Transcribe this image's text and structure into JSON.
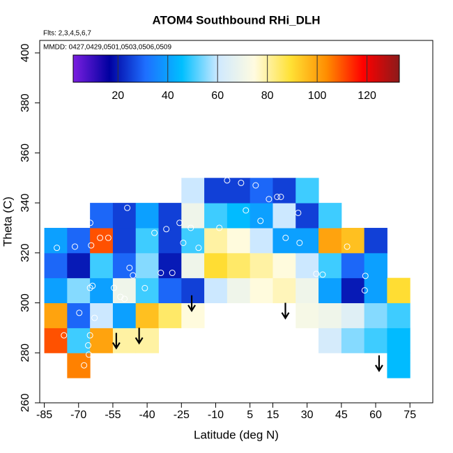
{
  "chart_data": {
    "type": "heatmap",
    "title": "ATOM4 Southbound RHi_DLH",
    "annotations": [
      "Flts: 2,3,4,5,6,7",
      "MMDD: 0427,0429,0501,0503,0506,0509"
    ],
    "x_label": "Latitude (deg N)",
    "y_label": "Theta (C)",
    "xlim": [
      -87,
      85
    ],
    "xticks": [
      -85,
      -70,
      -55,
      -40,
      -25,
      -10,
      5,
      15,
      30,
      45,
      60,
      75
    ],
    "ylim": [
      260,
      405
    ],
    "yticks": [
      260,
      280,
      300,
      320,
      340,
      360,
      380,
      400
    ],
    "x_centers": [
      -80,
      -70,
      -60,
      -50,
      -40,
      -30,
      -20,
      -10,
      0,
      10,
      20,
      30,
      40,
      50,
      60,
      70
    ],
    "y_centers": [
      275,
      285,
      295,
      305,
      315,
      325,
      335,
      345
    ],
    "z": [
      [
        null,
        105,
        null,
        null,
        null,
        null,
        null,
        null,
        null,
        null,
        null,
        null,
        null,
        null,
        null,
        45
      ],
      [
        110,
        50,
        100,
        80,
        80,
        null,
        null,
        null,
        null,
        null,
        null,
        null,
        62,
        55,
        50,
        45
      ],
      [
        100,
        30,
        60,
        40,
        95,
        85,
        75,
        null,
        null,
        null,
        null,
        72,
        70,
        65,
        55,
        50
      ],
      [
        40,
        55,
        40,
        70,
        50,
        30,
        25,
        60,
        70,
        75,
        78,
        70,
        40,
        20,
        40,
        90
      ],
      [
        30,
        20,
        50,
        30,
        55,
        20,
        70,
        90,
        85,
        80,
        75,
        60,
        50,
        30,
        40,
        null
      ],
      [
        40,
        30,
        110,
        25,
        50,
        25,
        50,
        80,
        75,
        60,
        40,
        40,
        100,
        95,
        25,
        null
      ],
      [
        null,
        null,
        30,
        25,
        40,
        25,
        70,
        50,
        45,
        40,
        60,
        25,
        50,
        null,
        null,
        null
      ],
      [
        null,
        null,
        null,
        null,
        null,
        null,
        60,
        25,
        25,
        30,
        25,
        50,
        null,
        null,
        null,
        null
      ]
    ],
    "clim": [
      2,
      133
    ],
    "colorscale": [
      "#7b1fe0",
      "#0000a0",
      "#1e6fff",
      "#00bfff",
      "#cfe9ff",
      "#fffbe0",
      "#ffe135",
      "#ff8c00",
      "#ff0000",
      "#8b1a1a"
    ],
    "colorbar_ticks": [
      20,
      40,
      60,
      80,
      100,
      120
    ],
    "points": {
      "x": [
        -79.5,
        -71.6,
        -64.5,
        -60.6,
        -57,
        -64.9,
        -48.7,
        -36.8,
        -31.6,
        -25.8,
        -24.2,
        -20.9,
        -5,
        1.1,
        7.5,
        -8.4,
        3.2,
        13.3,
        16.9,
        18.5,
        9.6,
        26.1,
        20.6,
        26.7,
        34,
        36.8,
        47.5,
        55.5,
        55.2,
        -47.7,
        -46.2,
        -41,
        -54.5,
        -63.9,
        -65,
        -49.9,
        -51.7,
        -69.7,
        -63,
        -65,
        -65.8,
        -65.5,
        -67.6,
        -63.3,
        -76.4,
        -34,
        -29,
        -17.5
      ],
      "y": [
        322,
        322.5,
        323,
        326,
        326,
        332,
        338,
        328,
        329.5,
        332,
        324,
        330,
        349,
        348,
        347,
        330,
        337,
        341.5,
        342.4,
        342.4,
        332.8,
        336,
        326,
        324,
        311.6,
        311.3,
        322.5,
        310.8,
        305,
        314,
        311,
        305.9,
        306,
        306.8,
        306,
        301.6,
        302.4,
        296,
        294,
        287,
        283,
        279.3,
        275,
        275.6,
        287,
        312,
        312,
        322
      ]
    },
    "point_color": "#ffffff",
    "arrows": {
      "x": [
        -53.5,
        -43.5,
        -20.5,
        20.5,
        61.5
      ],
      "y": [
        288,
        290,
        303,
        300,
        279
      ]
    },
    "arrow_color": "#000000"
  }
}
